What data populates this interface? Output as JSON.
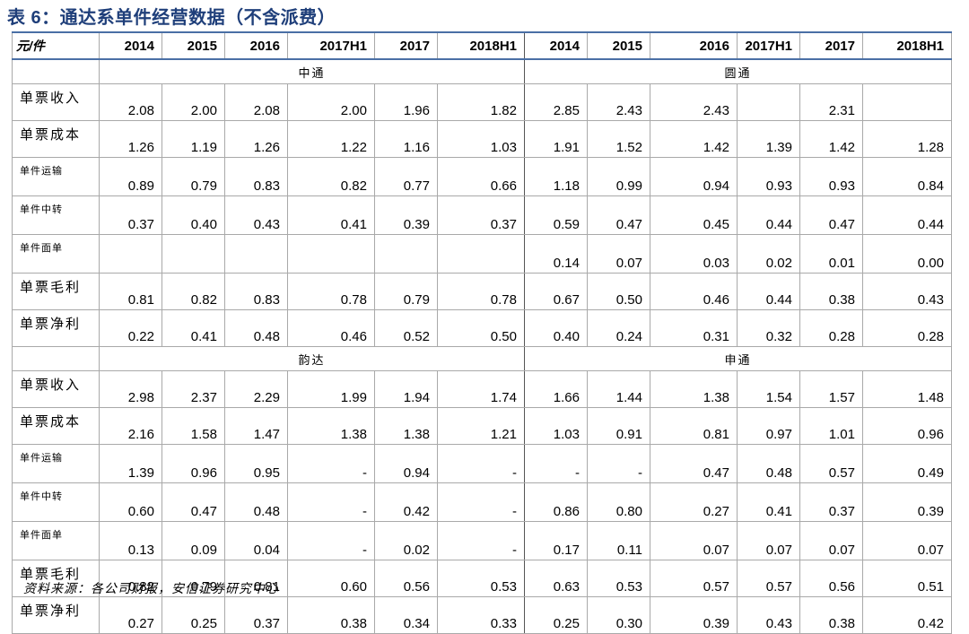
{
  "title": "表 6：通达系单件经营数据（不含派费）",
  "header": {
    "unit": "元/件",
    "years": [
      "2014",
      "2015",
      "2016",
      "2017H1",
      "2017",
      "2018H1",
      "2014",
      "2015",
      "2016",
      "2017H1",
      "2017",
      "2018H1"
    ]
  },
  "sections": [
    {
      "left_company": "中通",
      "right_company": "圆通",
      "rows": [
        {
          "label": "单票收入",
          "small": false,
          "values": [
            "2.08",
            "2.00",
            "2.08",
            "2.00",
            "1.96",
            "1.82",
            "2.85",
            "2.43",
            "2.43",
            "",
            "2.31",
            ""
          ]
        },
        {
          "label": "单票成本",
          "small": false,
          "values": [
            "1.26",
            "1.19",
            "1.26",
            "1.22",
            "1.16",
            "1.03",
            "1.91",
            "1.52",
            "1.42",
            "1.39",
            "1.42",
            "1.28"
          ]
        },
        {
          "label": "单件运输",
          "small": true,
          "values": [
            "0.89",
            "0.79",
            "0.83",
            "0.82",
            "0.77",
            "0.66",
            "1.18",
            "0.99",
            "0.94",
            "0.93",
            "0.93",
            "0.84"
          ]
        },
        {
          "label": "单件中转",
          "small": true,
          "values": [
            "0.37",
            "0.40",
            "0.43",
            "0.41",
            "0.39",
            "0.37",
            "0.59",
            "0.47",
            "0.45",
            "0.44",
            "0.47",
            "0.44"
          ]
        },
        {
          "label": "单件面单",
          "small": true,
          "values": [
            "",
            "",
            "",
            "",
            "",
            "",
            "0.14",
            "0.07",
            "0.03",
            "0.02",
            "0.01",
            "0.00"
          ]
        },
        {
          "label": "单票毛利",
          "small": false,
          "values": [
            "0.81",
            "0.82",
            "0.83",
            "0.78",
            "0.79",
            "0.78",
            "0.67",
            "0.50",
            "0.46",
            "0.44",
            "0.38",
            "0.43"
          ]
        },
        {
          "label": "单票净利",
          "small": false,
          "values": [
            "0.22",
            "0.41",
            "0.48",
            "0.46",
            "0.52",
            "0.50",
            "0.40",
            "0.24",
            "0.31",
            "0.32",
            "0.28",
            "0.28"
          ]
        }
      ]
    },
    {
      "left_company": "韵达",
      "right_company": "申通",
      "rows": [
        {
          "label": "单票收入",
          "small": false,
          "values": [
            "2.98",
            "2.37",
            "2.29",
            "1.99",
            "1.94",
            "1.74",
            "1.66",
            "1.44",
            "1.38",
            "1.54",
            "1.57",
            "1.48"
          ]
        },
        {
          "label": "单票成本",
          "small": false,
          "values": [
            "2.16",
            "1.58",
            "1.47",
            "1.38",
            "1.38",
            "1.21",
            "1.03",
            "0.91",
            "0.81",
            "0.97",
            "1.01",
            "0.96"
          ]
        },
        {
          "label": "单件运输",
          "small": true,
          "values": [
            "1.39",
            "0.96",
            "0.95",
            "-",
            "0.94",
            "-",
            "-",
            "-",
            "0.47",
            "0.48",
            "0.57",
            "0.49"
          ]
        },
        {
          "label": "单件中转",
          "small": true,
          "values": [
            "0.60",
            "0.47",
            "0.48",
            "-",
            "0.42",
            "-",
            "0.86",
            "0.80",
            "0.27",
            "0.41",
            "0.37",
            "0.39"
          ]
        },
        {
          "label": "单件面单",
          "small": true,
          "values": [
            "0.13",
            "0.09",
            "0.04",
            "-",
            "0.02",
            "-",
            "0.17",
            "0.11",
            "0.07",
            "0.07",
            "0.07",
            "0.07"
          ]
        },
        {
          "label": "单票毛利",
          "small": false,
          "values": [
            "0.82",
            "0.79",
            "0.81",
            "0.60",
            "0.56",
            "0.53",
            "0.63",
            "0.53",
            "0.57",
            "0.57",
            "0.56",
            "0.51"
          ]
        },
        {
          "label": "单票净利",
          "small": false,
          "values": [
            "0.27",
            "0.25",
            "0.37",
            "0.38",
            "0.34",
            "0.33",
            "0.25",
            "0.30",
            "0.39",
            "0.43",
            "0.38",
            "0.42"
          ]
        }
      ]
    }
  ],
  "source": "资料来源：各公司财报，安信证券研究中心"
}
